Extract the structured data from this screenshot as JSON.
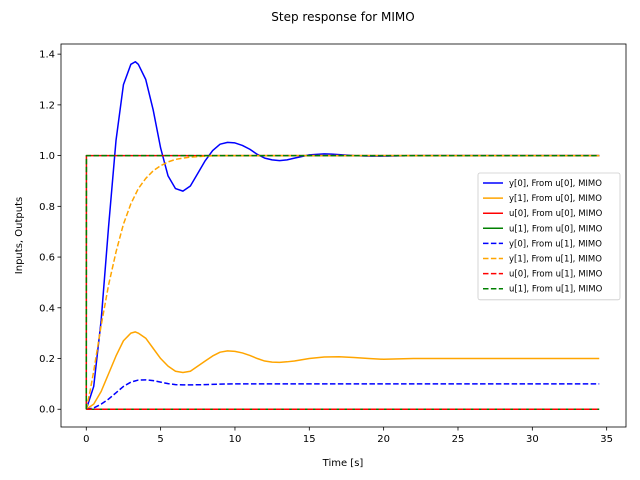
{
  "chart_data": {
    "type": "line",
    "title": "Step response for MIMO",
    "xlabel": "Time [s]",
    "ylabel": "Inputs, Outputs",
    "xlim": [
      -1.7,
      36.3
    ],
    "ylim": [
      -0.07,
      1.44
    ],
    "xticks": [
      0,
      5,
      10,
      15,
      20,
      25,
      30,
      35
    ],
    "yticks": [
      0.0,
      0.2,
      0.4,
      0.6,
      0.8,
      1.0,
      1.2,
      1.4
    ],
    "xtick_labels": [
      "0",
      "5",
      "10",
      "15",
      "20",
      "25",
      "30",
      "35"
    ],
    "ytick_labels": [
      "0.0",
      "0.2",
      "0.4",
      "0.6",
      "0.8",
      "1.0",
      "1.2",
      "1.4"
    ],
    "grid": false,
    "legend_position": "center-right",
    "series": [
      {
        "name": "y[0], From u[0], MIMO",
        "color": "#0000ff",
        "dash": "solid",
        "x": [
          0,
          0.5,
          1,
          1.5,
          2,
          2.5,
          3,
          3.3,
          3.5,
          4,
          4.5,
          5,
          5.5,
          6,
          6.5,
          7,
          7.5,
          8,
          8.5,
          9,
          9.5,
          10,
          10.5,
          11,
          11.5,
          12,
          12.5,
          13,
          13.5,
          14,
          15,
          16,
          16.5,
          17,
          18,
          19,
          20,
          22,
          25,
          28,
          31,
          34.5
        ],
        "y": [
          0,
          0.09,
          0.35,
          0.72,
          1.06,
          1.28,
          1.36,
          1.37,
          1.36,
          1.3,
          1.18,
          1.03,
          0.92,
          0.87,
          0.86,
          0.88,
          0.93,
          0.98,
          1.02,
          1.045,
          1.052,
          1.05,
          1.04,
          1.025,
          1.005,
          0.99,
          0.983,
          0.98,
          0.983,
          0.99,
          1.003,
          1.007,
          1.006,
          1.004,
          1.0,
          0.998,
          0.998,
          1.0,
          1.0,
          1.0,
          1.0,
          1.0
        ]
      },
      {
        "name": "y[1], From u[0], MIMO",
        "color": "#ffa500",
        "dash": "solid",
        "x": [
          0,
          0.5,
          1,
          1.5,
          2,
          2.5,
          3,
          3.3,
          3.5,
          4,
          4.5,
          5,
          5.5,
          6,
          6.5,
          7,
          7.5,
          8,
          8.5,
          9,
          9.5,
          10,
          10.5,
          11,
          11.5,
          12,
          12.5,
          13,
          13.5,
          14,
          15,
          16,
          17,
          18,
          19,
          20,
          22,
          25,
          28,
          31,
          34.5
        ],
        "y": [
          0,
          0.02,
          0.07,
          0.14,
          0.21,
          0.27,
          0.3,
          0.305,
          0.3,
          0.28,
          0.24,
          0.2,
          0.17,
          0.15,
          0.145,
          0.15,
          0.17,
          0.19,
          0.21,
          0.225,
          0.23,
          0.228,
          0.222,
          0.212,
          0.2,
          0.19,
          0.186,
          0.185,
          0.187,
          0.19,
          0.2,
          0.206,
          0.207,
          0.204,
          0.2,
          0.197,
          0.2,
          0.2,
          0.2,
          0.2,
          0.2
        ]
      },
      {
        "name": "u[0], From u[0], MIMO",
        "color": "#ff0000",
        "dash": "solid",
        "x": [
          0,
          0.01,
          34.5
        ],
        "y": [
          0,
          1,
          1
        ]
      },
      {
        "name": "u[1], From u[0], MIMO",
        "color": "#008000",
        "dash": "solid",
        "x": [
          0,
          34.5
        ],
        "y": [
          0,
          0
        ]
      },
      {
        "name": "y[0], From u[1], MIMO",
        "color": "#0000ff",
        "dash": "dashed",
        "x": [
          0,
          0.5,
          1,
          1.5,
          2,
          2.5,
          3,
          3.5,
          4,
          4.5,
          5,
          5.5,
          6,
          6.5,
          7,
          8,
          9,
          10,
          12,
          15,
          20,
          25,
          30,
          34.5
        ],
        "y": [
          0,
          0.005,
          0.02,
          0.04,
          0.065,
          0.09,
          0.107,
          0.115,
          0.116,
          0.113,
          0.107,
          0.101,
          0.097,
          0.096,
          0.096,
          0.097,
          0.099,
          0.1,
          0.1,
          0.1,
          0.1,
          0.1,
          0.1,
          0.1
        ]
      },
      {
        "name": "y[1], From u[1], MIMO",
        "color": "#ffa500",
        "dash": "dashed",
        "x": [
          0,
          0.25,
          0.5,
          0.75,
          1,
          1.5,
          2,
          2.5,
          3,
          3.5,
          4,
          4.5,
          5,
          5.5,
          6,
          6.5,
          7,
          8,
          9,
          10,
          12,
          15,
          20,
          25,
          30,
          34.5
        ],
        "y": [
          0,
          0.07,
          0.15,
          0.24,
          0.33,
          0.49,
          0.62,
          0.73,
          0.81,
          0.87,
          0.91,
          0.94,
          0.96,
          0.975,
          0.985,
          0.99,
          0.994,
          0.998,
          1.0,
          1.0,
          1.0,
          1.0,
          1.0,
          1.0,
          1.0,
          1.0
        ]
      },
      {
        "name": "u[0], From u[1], MIMO",
        "color": "#ff0000",
        "dash": "dashed",
        "x": [
          0,
          34.5
        ],
        "y": [
          0,
          0
        ]
      },
      {
        "name": "u[1], From u[1], MIMO",
        "color": "#008000",
        "dash": "dashed",
        "x": [
          0,
          0.01,
          34.5
        ],
        "y": [
          0,
          1,
          1
        ]
      }
    ]
  }
}
